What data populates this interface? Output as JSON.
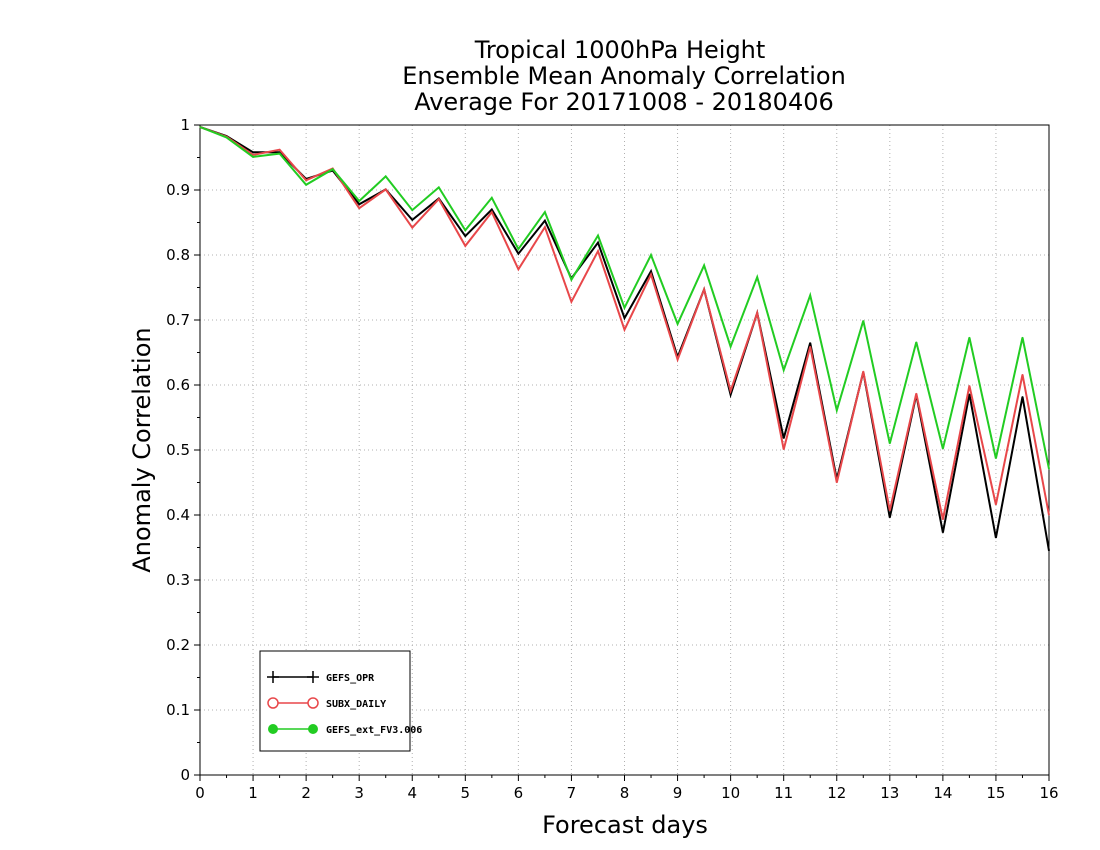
{
  "chart_data": {
    "type": "line",
    "title": [
      "Tropical 1000hPa Height",
      "Ensemble Mean Anomaly Correlation",
      "Average For 20171008 - 20180406"
    ],
    "xlabel": "Forecast days",
    "ylabel": "Anomaly Correlation",
    "xlim": [
      0,
      16
    ],
    "ylim": [
      0,
      1
    ],
    "x_ticks": [
      0,
      1,
      2,
      3,
      4,
      5,
      6,
      7,
      8,
      9,
      10,
      11,
      12,
      13,
      14,
      15,
      16
    ],
    "y_ticks": [
      0,
      0.1,
      0.2,
      0.3,
      0.4,
      0.5,
      0.6,
      0.7,
      0.8,
      0.9,
      1
    ],
    "y_tick_labels": [
      "0",
      "0.1",
      "0.2",
      "0.3",
      "0.4",
      "0.5",
      "0.6",
      "0.7",
      "0.8",
      "0.9",
      "1"
    ],
    "grid": true,
    "legend_position": "bottom-left",
    "x": [
      0,
      0.5,
      1,
      1.5,
      2,
      2.5,
      3,
      3.5,
      4,
      4.5,
      5,
      5.5,
      6,
      6.5,
      7,
      7.5,
      8,
      8.5,
      9,
      9.5,
      10,
      10.5,
      11,
      11.5,
      12,
      12.5,
      13,
      13.5,
      14,
      14.5,
      15,
      15.5,
      16
    ],
    "series": [
      {
        "name": "GEFS_OPR",
        "color": "#000000",
        "marker": "plus",
        "values": [
          0.997,
          0.983,
          0.958,
          0.958,
          0.917,
          0.93,
          0.878,
          0.901,
          0.854,
          0.887,
          0.829,
          0.87,
          0.802,
          0.853,
          0.764,
          0.819,
          0.703,
          0.775,
          0.643,
          0.747,
          0.585,
          0.711,
          0.518,
          0.665,
          0.455,
          0.62,
          0.396,
          0.585,
          0.373,
          0.586,
          0.365,
          0.582,
          0.345
        ]
      },
      {
        "name": "SUBX_DAILY",
        "color": "#e8474a",
        "marker": "open-circle",
        "values": [
          0.997,
          0.982,
          0.954,
          0.962,
          0.915,
          0.933,
          0.872,
          0.901,
          0.842,
          0.886,
          0.814,
          0.866,
          0.778,
          0.843,
          0.728,
          0.806,
          0.685,
          0.77,
          0.639,
          0.747,
          0.591,
          0.711,
          0.501,
          0.659,
          0.45,
          0.621,
          0.407,
          0.587,
          0.393,
          0.599,
          0.416,
          0.616,
          0.4
        ]
      },
      {
        "name": "GEFS_ext_FV3.006",
        "color": "#22cc22",
        "marker": "filled-circle",
        "values": [
          0.997,
          0.981,
          0.951,
          0.956,
          0.908,
          0.932,
          0.883,
          0.921,
          0.869,
          0.904,
          0.838,
          0.888,
          0.809,
          0.866,
          0.762,
          0.83,
          0.719,
          0.8,
          0.694,
          0.784,
          0.659,
          0.766,
          0.623,
          0.738,
          0.561,
          0.699,
          0.51,
          0.666,
          0.502,
          0.673,
          0.487,
          0.673,
          0.471
        ]
      }
    ]
  }
}
